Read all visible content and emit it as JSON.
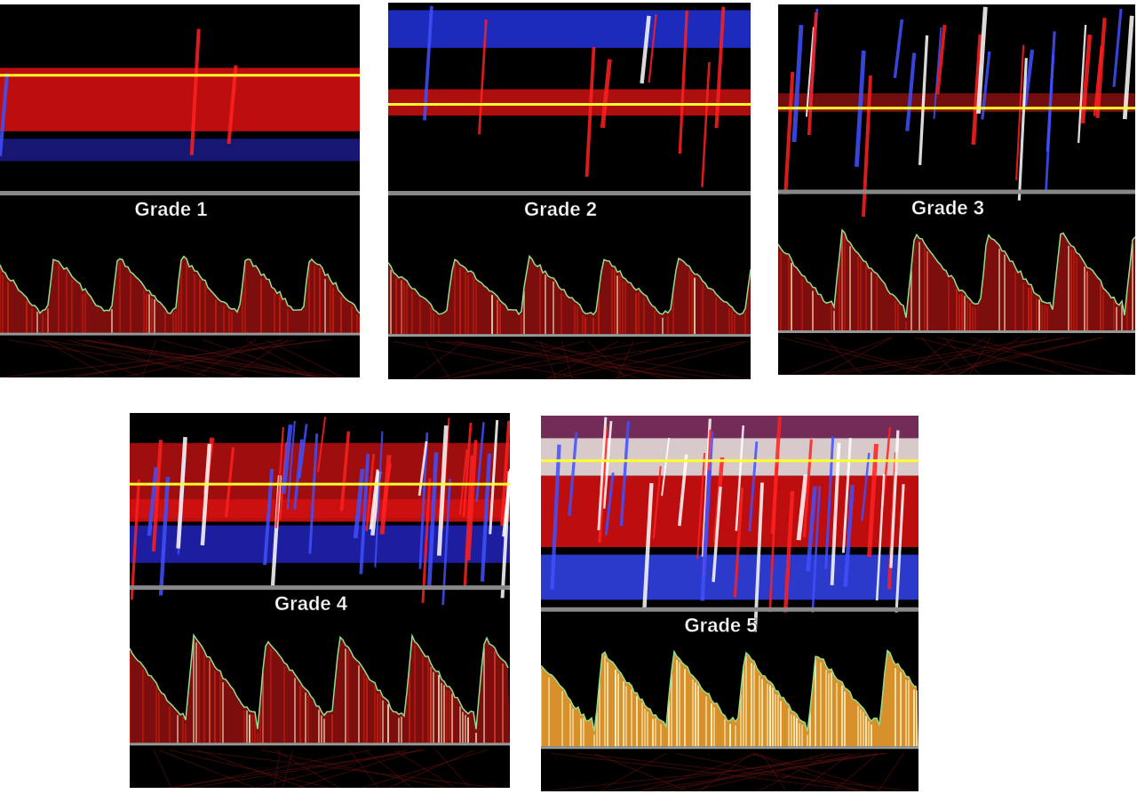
{
  "panels": [
    {
      "label": "Grade 1"
    },
    {
      "label": "Grade 2"
    },
    {
      "label": "Grade 3"
    },
    {
      "label": "Grade 4"
    },
    {
      "label": "Grade 5"
    }
  ]
}
